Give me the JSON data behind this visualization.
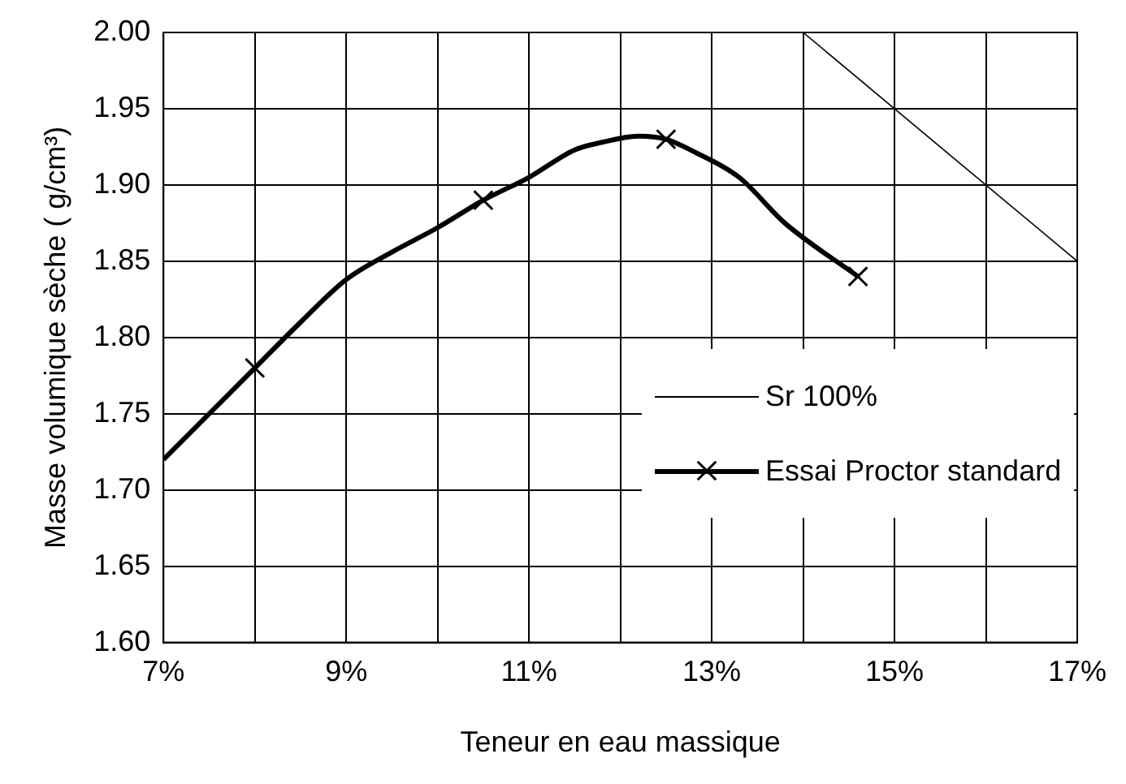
{
  "chart_data": {
    "type": "line",
    "xlabel": "Teneur en eau massique",
    "ylabel": "Masse volumique sèche ( g/cm³)",
    "xlim": [
      7,
      17
    ],
    "ylim": [
      1.6,
      2.0
    ],
    "xticks": [
      {
        "value": 7,
        "label": "7%"
      },
      {
        "value": 8,
        "label": null
      },
      {
        "value": 9,
        "label": "9%"
      },
      {
        "value": 10,
        "label": null
      },
      {
        "value": 11,
        "label": "11%"
      },
      {
        "value": 12,
        "label": null
      },
      {
        "value": 13,
        "label": "13%"
      },
      {
        "value": 14,
        "label": null
      },
      {
        "value": 15,
        "label": "15%"
      },
      {
        "value": 16,
        "label": null
      },
      {
        "value": 17,
        "label": "17%"
      }
    ],
    "yticks": [
      {
        "value": 1.6,
        "label": "1.60"
      },
      {
        "value": 1.65,
        "label": "1.65"
      },
      {
        "value": 1.7,
        "label": "1.70"
      },
      {
        "value": 1.75,
        "label": "1.75"
      },
      {
        "value": 1.8,
        "label": "1.80"
      },
      {
        "value": 1.85,
        "label": "1.85"
      },
      {
        "value": 1.9,
        "label": "1.90"
      },
      {
        "value": 1.95,
        "label": "1.95"
      },
      {
        "value": 2.0,
        "label": "2.00"
      }
    ],
    "grid": true,
    "legend": "right",
    "series": [
      {
        "name": "Sr 100%",
        "type": "line",
        "color": "#000000",
        "marker": "none",
        "x": [
          14,
          17
        ],
        "values": [
          2.0,
          1.85
        ]
      },
      {
        "type": "line",
        "color": "#000000",
        "marker": "none",
        "x": [
          7,
          7.5,
          8,
          8.5,
          9,
          9.5,
          10,
          10.5,
          11,
          11.5,
          11.8,
          12.2,
          12.5,
          12.8,
          13.3,
          13.8,
          14.6
        ],
        "values": [
          1.72,
          1.75,
          1.78,
          1.81,
          1.838,
          1.856,
          1.872,
          1.89,
          1.905,
          1.923,
          1.928,
          1.932,
          1.93,
          1.922,
          1.905,
          1.875,
          1.84
        ]
      },
      {
        "name": "Essai Proctor standard",
        "type": "scatter",
        "color": "#000000",
        "marker": "cross",
        "x": [
          8,
          10.5,
          12.5,
          14.6
        ],
        "values": [
          1.78,
          1.89,
          1.93,
          1.84
        ]
      }
    ]
  }
}
